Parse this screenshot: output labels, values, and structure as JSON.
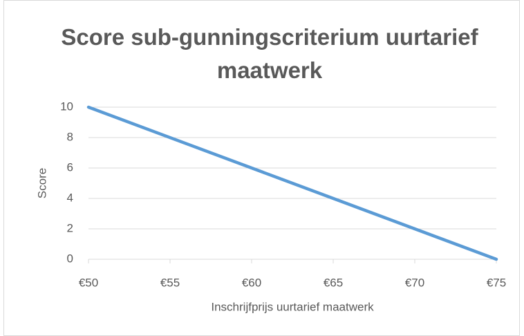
{
  "chart_data": {
    "type": "line",
    "title": "Score sub-gunningscriterium uurtarief maatwerk",
    "x_label": "Inschrijfprijs uurtarief maatwerk",
    "y_label": "Score",
    "x": [
      50,
      75
    ],
    "values": [
      10,
      0
    ],
    "color": "#5b9bd5",
    "xlim": [
      50,
      75
    ],
    "xticks": [
      {
        "value": 50,
        "label": "€50"
      },
      {
        "value": 55,
        "label": "€55"
      },
      {
        "value": 60,
        "label": "€60"
      },
      {
        "value": 65,
        "label": "€65"
      },
      {
        "value": 70,
        "label": "€70"
      },
      {
        "value": 75,
        "label": "€75"
      }
    ],
    "ylim": [
      0,
      10
    ],
    "yticks": [
      0,
      2,
      4,
      6,
      8,
      10
    ],
    "grid": true
  }
}
